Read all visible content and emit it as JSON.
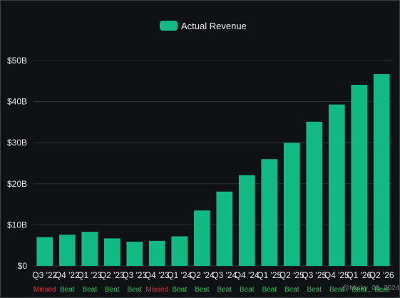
{
  "chart_data": {
    "type": "bar",
    "legend": {
      "label": "Actual Revenue",
      "placement": "top-center"
    },
    "colors": {
      "bar": "#13b983",
      "beat": "#2fc25b",
      "missed": "#e8343d",
      "grid": "#2d3236",
      "text": "#e6e6e6"
    },
    "grid": true,
    "ylim": [
      0,
      50
    ],
    "yticks": [
      {
        "value": 0,
        "label": "$0"
      },
      {
        "value": 10,
        "label": "$10B"
      },
      {
        "value": 20,
        "label": "$20B"
      },
      {
        "value": 30,
        "label": "$30B"
      },
      {
        "value": 40,
        "label": "$40B"
      },
      {
        "value": 50,
        "label": "$50B"
      }
    ],
    "categories": [
      "Q3 '22",
      "Q4 '22",
      "Q1 '23",
      "Q2 '23",
      "Q3 '23",
      "Q4 '23",
      "Q1 '24",
      "Q2 '24",
      "Q3 '24",
      "Q4 '24",
      "Q1 '25",
      "Q2 '25",
      "Q3 '25",
      "Q4 '25",
      "Q1 '26",
      "Q2 '26"
    ],
    "values": [
      7.0,
      7.6,
      8.3,
      6.7,
      5.9,
      6.1,
      7.2,
      13.5,
      18.1,
      22.1,
      26.0,
      30.0,
      35.1,
      39.3,
      44.1,
      46.7
    ],
    "status": [
      "Missed",
      "Beat",
      "Beat",
      "Beat",
      "Beat",
      "Missed",
      "Beat",
      "Beat",
      "Beat",
      "Beat",
      "Beat",
      "Beat",
      "Beat",
      "Beat",
      "Beat",
      "Beat"
    ],
    "watermark": "@Micky_08_2024"
  }
}
